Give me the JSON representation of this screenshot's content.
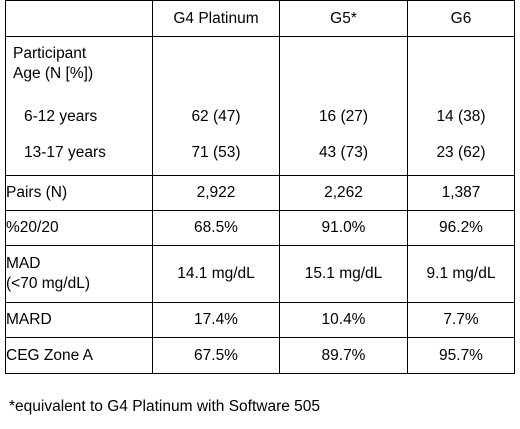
{
  "table": {
    "header": [
      "",
      "G4 Platinum",
      "G5*",
      "G6"
    ],
    "age_section": {
      "title_line1": "Participant",
      "title_line2": "Age (N [%])",
      "rows": [
        {
          "label": "6-12 years",
          "values": [
            "62 (47)",
            "16 (27)",
            "14 (38)"
          ]
        },
        {
          "label": "13-17 years",
          "values": [
            "71 (53)",
            "43 (73)",
            "23 (62)"
          ]
        }
      ]
    },
    "rows": [
      {
        "label": "Pairs (N)",
        "values": [
          "2,922",
          "2,262",
          "1,387"
        ]
      },
      {
        "label": "%20/20",
        "values": [
          "68.5%",
          "91.0%",
          "96.2%"
        ]
      },
      {
        "label_line1": "MAD",
        "label_line2": "(<70 mg/dL)",
        "values": [
          "14.1 mg/dL",
          "15.1 mg/dL",
          "9.1 mg/dL"
        ]
      },
      {
        "label": "MARD",
        "values": [
          "17.4%",
          "10.4%",
          "7.7%"
        ]
      },
      {
        "label": "CEG Zone A",
        "values": [
          "67.5%",
          "89.7%",
          "95.7%"
        ]
      }
    ]
  },
  "footnote": "*equivalent to G4 Platinum with Software 505"
}
